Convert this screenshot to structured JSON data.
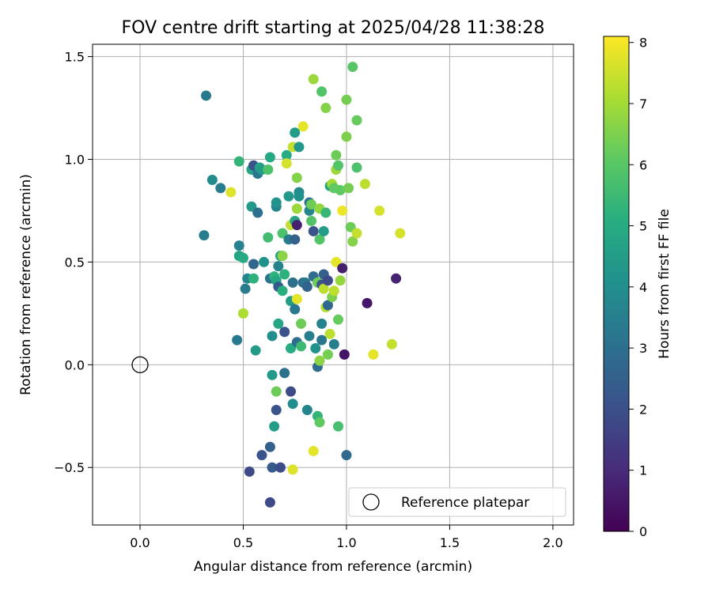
{
  "chart_data": {
    "type": "scatter",
    "title": "FOV centre drift starting at 2025/04/28 11:38:28",
    "xlabel": "Angular distance from reference (arcmin)",
    "ylabel": "Rotation from reference (arcmin)",
    "xlim": [
      -0.23,
      2.1
    ],
    "ylim": [
      -0.78,
      1.56
    ],
    "xticks": [
      0.0,
      0.5,
      1.0,
      1.5,
      2.0
    ],
    "xtick_labels": [
      "0.0",
      "0.5",
      "1.0",
      "1.5",
      "2.0"
    ],
    "yticks": [
      -0.5,
      0.0,
      0.5,
      1.0,
      1.5
    ],
    "ytick_labels": [
      "−0.5",
      "0.0",
      "0.5",
      "1.0",
      "1.5"
    ],
    "grid": true,
    "colormap": "viridis",
    "colorbar": {
      "label": "Hours from first FF file",
      "range": [
        0,
        8.1
      ],
      "ticks": [
        0,
        1,
        2,
        3,
        4,
        5,
        6,
        7,
        8
      ],
      "tick_labels": [
        "0",
        "1",
        "2",
        "3",
        "4",
        "5",
        "6",
        "7",
        "8"
      ]
    },
    "reference": {
      "x": 0.0,
      "y": 0.0,
      "label": "Reference platepar"
    },
    "legend_position": "lower right",
    "points": [
      {
        "x": 0.32,
        "y": 1.31,
        "h": 3.3
      },
      {
        "x": 0.35,
        "y": 0.9,
        "h": 3.9
      },
      {
        "x": 0.39,
        "y": 0.86,
        "h": 3.4
      },
      {
        "x": 0.31,
        "y": 0.63,
        "h": 3.4
      },
      {
        "x": 0.44,
        "y": 0.84,
        "h": 7.7
      },
      {
        "x": 0.48,
        "y": 0.99,
        "h": 5.3
      },
      {
        "x": 0.48,
        "y": 0.53,
        "h": 4.7
      },
      {
        "x": 0.48,
        "y": 0.58,
        "h": 3.6
      },
      {
        "x": 0.47,
        "y": 0.12,
        "h": 3.3
      },
      {
        "x": 0.5,
        "y": 0.52,
        "h": 5.0
      },
      {
        "x": 0.5,
        "y": 0.25,
        "h": 7.1
      },
      {
        "x": 0.51,
        "y": 0.37,
        "h": 3.4
      },
      {
        "x": 0.52,
        "y": 0.42,
        "h": 3.7
      },
      {
        "x": 0.53,
        "y": -0.52,
        "h": 1.8
      },
      {
        "x": 0.54,
        "y": 0.77,
        "h": 4.4
      },
      {
        "x": 0.54,
        "y": 0.95,
        "h": 4.8
      },
      {
        "x": 0.55,
        "y": 0.97,
        "h": 2.1
      },
      {
        "x": 0.55,
        "y": 0.42,
        "h": 5.2
      },
      {
        "x": 0.55,
        "y": 0.49,
        "h": 2.7
      },
      {
        "x": 0.56,
        "y": 0.07,
        "h": 4.4
      },
      {
        "x": 0.57,
        "y": 0.74,
        "h": 3.0
      },
      {
        "x": 0.57,
        "y": 0.93,
        "h": 3.2
      },
      {
        "x": 0.58,
        "y": 0.96,
        "h": 4.7
      },
      {
        "x": 0.59,
        "y": 0.95,
        "h": 4.5
      },
      {
        "x": 0.6,
        "y": 0.5,
        "h": 4.1
      },
      {
        "x": 0.59,
        "y": -0.44,
        "h": 2.1
      },
      {
        "x": 0.62,
        "y": 0.62,
        "h": 5.6
      },
      {
        "x": 0.62,
        "y": 0.95,
        "h": 5.8
      },
      {
        "x": 0.63,
        "y": 1.01,
        "h": 4.9
      },
      {
        "x": 0.63,
        "y": -0.4,
        "h": 2.5
      },
      {
        "x": 0.63,
        "y": 0.42,
        "h": 3.1
      },
      {
        "x": 0.63,
        "y": -0.67,
        "h": 1.8
      },
      {
        "x": 0.64,
        "y": 0.14,
        "h": 4.0
      },
      {
        "x": 0.64,
        "y": -0.05,
        "h": 4.4
      },
      {
        "x": 0.64,
        "y": -0.5,
        "h": 2.3
      },
      {
        "x": 0.65,
        "y": 0.43,
        "h": 5.2
      },
      {
        "x": 0.65,
        "y": -0.3,
        "h": 4.5
      },
      {
        "x": 0.66,
        "y": 0.41,
        "h": 4.9
      },
      {
        "x": 0.66,
        "y": -0.13,
        "h": 6.3
      },
      {
        "x": 0.66,
        "y": 0.77,
        "h": 3.7
      },
      {
        "x": 0.66,
        "y": 0.79,
        "h": 4.2
      },
      {
        "x": 0.66,
        "y": -0.22,
        "h": 2.1
      },
      {
        "x": 0.67,
        "y": 0.38,
        "h": 2.3
      },
      {
        "x": 0.67,
        "y": 0.48,
        "h": 3.6
      },
      {
        "x": 0.67,
        "y": 0.2,
        "h": 4.8
      },
      {
        "x": 0.68,
        "y": 0.53,
        "h": 4.6
      },
      {
        "x": 0.68,
        "y": -0.5,
        "h": 1.9
      },
      {
        "x": 0.69,
        "y": 0.36,
        "h": 5.1
      },
      {
        "x": 0.69,
        "y": 0.53,
        "h": 6.7
      },
      {
        "x": 0.69,
        "y": 0.64,
        "h": 5.8
      },
      {
        "x": 0.7,
        "y": 0.16,
        "h": 2.1
      },
      {
        "x": 0.7,
        "y": -0.04,
        "h": 3.0
      },
      {
        "x": 0.7,
        "y": 0.44,
        "h": 5.2
      },
      {
        "x": 0.71,
        "y": 1.02,
        "h": 5.0
      },
      {
        "x": 0.71,
        "y": 0.98,
        "h": 7.6
      },
      {
        "x": 0.72,
        "y": 0.61,
        "h": 3.4
      },
      {
        "x": 0.72,
        "y": 0.82,
        "h": 4.4
      },
      {
        "x": 0.73,
        "y": 0.68,
        "h": 7.4
      },
      {
        "x": 0.73,
        "y": -0.13,
        "h": 1.9
      },
      {
        "x": 0.73,
        "y": 0.08,
        "h": 5.0
      },
      {
        "x": 0.73,
        "y": 0.31,
        "h": 4.5
      },
      {
        "x": 0.74,
        "y": -0.19,
        "h": 4.0
      },
      {
        "x": 0.74,
        "y": 0.4,
        "h": 3.0
      },
      {
        "x": 0.74,
        "y": 1.06,
        "h": 7.4
      },
      {
        "x": 0.74,
        "y": -0.51,
        "h": 7.7
      },
      {
        "x": 0.75,
        "y": 0.27,
        "h": 3.3
      },
      {
        "x": 0.75,
        "y": 0.7,
        "h": 4.8
      },
      {
        "x": 0.75,
        "y": 0.61,
        "h": 2.5
      },
      {
        "x": 0.75,
        "y": 1.13,
        "h": 4.5
      },
      {
        "x": 0.76,
        "y": 0.32,
        "h": 7.8
      },
      {
        "x": 0.76,
        "y": 0.11,
        "h": 2.9
      },
      {
        "x": 0.76,
        "y": 0.91,
        "h": 6.6
      },
      {
        "x": 0.76,
        "y": 0.68,
        "h": 0.7
      },
      {
        "x": 0.76,
        "y": 0.76,
        "h": 6.9
      },
      {
        "x": 0.77,
        "y": 0.84,
        "h": 3.8
      },
      {
        "x": 0.77,
        "y": 1.06,
        "h": 4.3
      },
      {
        "x": 0.77,
        "y": 0.82,
        "h": 4.1
      },
      {
        "x": 0.78,
        "y": 0.2,
        "h": 6.3
      },
      {
        "x": 0.78,
        "y": 0.09,
        "h": 5.5
      },
      {
        "x": 0.79,
        "y": 0.4,
        "h": 2.9
      },
      {
        "x": 0.79,
        "y": 1.16,
        "h": 7.8
      },
      {
        "x": 0.8,
        "y": 0.4,
        "h": 3.2
      },
      {
        "x": 0.81,
        "y": -0.22,
        "h": 3.7
      },
      {
        "x": 0.81,
        "y": 0.38,
        "h": 2.6
      },
      {
        "x": 0.82,
        "y": 0.75,
        "h": 3.7
      },
      {
        "x": 0.82,
        "y": 0.79,
        "h": 3.2
      },
      {
        "x": 0.82,
        "y": 0.14,
        "h": 3.5
      },
      {
        "x": 0.83,
        "y": 0.7,
        "h": 5.9
      },
      {
        "x": 0.83,
        "y": 0.78,
        "h": 6.3
      },
      {
        "x": 0.84,
        "y": 0.43,
        "h": 2.9
      },
      {
        "x": 0.84,
        "y": 1.39,
        "h": 6.9
      },
      {
        "x": 0.84,
        "y": 0.65,
        "h": 2.1
      },
      {
        "x": 0.84,
        "y": -0.42,
        "h": 7.8
      },
      {
        "x": 0.85,
        "y": 0.08,
        "h": 4.1
      },
      {
        "x": 0.86,
        "y": -0.01,
        "h": 2.9
      },
      {
        "x": 0.86,
        "y": 0.4,
        "h": 6.3
      },
      {
        "x": 0.86,
        "y": -0.25,
        "h": 5.3
      },
      {
        "x": 0.87,
        "y": 0.02,
        "h": 6.7
      },
      {
        "x": 0.87,
        "y": 0.61,
        "h": 5.9
      },
      {
        "x": 0.87,
        "y": 0.76,
        "h": 6.8
      },
      {
        "x": 0.87,
        "y": -0.28,
        "h": 6.1
      },
      {
        "x": 0.88,
        "y": 0.2,
        "h": 3.6
      },
      {
        "x": 0.88,
        "y": 0.39,
        "h": 2.1
      },
      {
        "x": 0.88,
        "y": 0.12,
        "h": 3.2
      },
      {
        "x": 0.88,
        "y": 1.33,
        "h": 5.9
      },
      {
        "x": 0.89,
        "y": 0.44,
        "h": 2.5
      },
      {
        "x": 0.89,
        "y": 0.65,
        "h": 4.5
      },
      {
        "x": 0.89,
        "y": 0.37,
        "h": 7.3
      },
      {
        "x": 0.9,
        "y": 1.25,
        "h": 6.6
      },
      {
        "x": 0.9,
        "y": 0.28,
        "h": 7.2
      },
      {
        "x": 0.9,
        "y": 0.74,
        "h": 5.4
      },
      {
        "x": 0.91,
        "y": 0.05,
        "h": 6.4
      },
      {
        "x": 0.91,
        "y": 0.29,
        "h": 2.7
      },
      {
        "x": 0.91,
        "y": 0.41,
        "h": 1.9
      },
      {
        "x": 0.92,
        "y": 0.15,
        "h": 7.3
      },
      {
        "x": 0.92,
        "y": 0.87,
        "h": 4.8
      },
      {
        "x": 0.93,
        "y": 0.88,
        "h": 7.0
      },
      {
        "x": 0.93,
        "y": 0.33,
        "h": 6.5
      },
      {
        "x": 0.94,
        "y": 0.86,
        "h": 6.1
      },
      {
        "x": 0.94,
        "y": 0.1,
        "h": 3.5
      },
      {
        "x": 0.94,
        "y": 0.36,
        "h": 7.3
      },
      {
        "x": 0.95,
        "y": 0.95,
        "h": 6.9
      },
      {
        "x": 0.95,
        "y": 1.02,
        "h": 6.3
      },
      {
        "x": 0.95,
        "y": 0.5,
        "h": 7.8
      },
      {
        "x": 0.96,
        "y": 0.22,
        "h": 6.2
      },
      {
        "x": 0.96,
        "y": -0.3,
        "h": 5.7
      },
      {
        "x": 0.96,
        "y": 0.97,
        "h": 5.9
      },
      {
        "x": 0.97,
        "y": 0.41,
        "h": 6.8
      },
      {
        "x": 0.97,
        "y": 0.85,
        "h": 6.1
      },
      {
        "x": 0.98,
        "y": 0.75,
        "h": 7.9
      },
      {
        "x": 0.98,
        "y": 0.47,
        "h": 0.7
      },
      {
        "x": 0.99,
        "y": 0.05,
        "h": 0.5
      },
      {
        "x": 1.0,
        "y": 1.11,
        "h": 6.5
      },
      {
        "x": 1.0,
        "y": 1.29,
        "h": 6.4
      },
      {
        "x": 1.0,
        "y": -0.44,
        "h": 2.8
      },
      {
        "x": 1.01,
        "y": 0.86,
        "h": 6.4
      },
      {
        "x": 1.02,
        "y": 0.67,
        "h": 6.3
      },
      {
        "x": 1.03,
        "y": 0.6,
        "h": 6.6
      },
      {
        "x": 1.03,
        "y": 1.45,
        "h": 6.0
      },
      {
        "x": 1.05,
        "y": 0.64,
        "h": 7.4
      },
      {
        "x": 1.05,
        "y": 0.96,
        "h": 5.8
      },
      {
        "x": 1.05,
        "y": 1.19,
        "h": 6.2
      },
      {
        "x": 1.09,
        "y": 0.88,
        "h": 7.3
      },
      {
        "x": 1.1,
        "y": 0.3,
        "h": 0.5
      },
      {
        "x": 1.13,
        "y": 0.05,
        "h": 7.8
      },
      {
        "x": 1.16,
        "y": 0.75,
        "h": 7.6
      },
      {
        "x": 1.22,
        "y": 0.1,
        "h": 7.4
      },
      {
        "x": 1.24,
        "y": 0.42,
        "h": 0.8
      },
      {
        "x": 1.26,
        "y": 0.64,
        "h": 7.6
      }
    ]
  }
}
